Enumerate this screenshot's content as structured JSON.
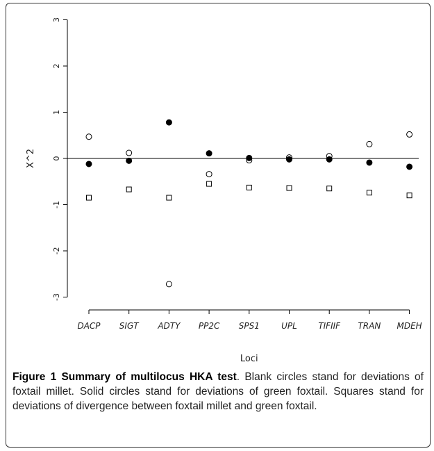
{
  "chart_data": {
    "type": "scatter",
    "categories": [
      "DACP",
      "SIGT",
      "ADTY",
      "PP2C",
      "SPS1",
      "UPL",
      "TIFIIF",
      "TRAN",
      "MDEH"
    ],
    "xlabel": "Loci",
    "ylabel": "X^2",
    "ylim": [
      -3,
      3
    ],
    "yticks": [
      "-3",
      "-2",
      "-1",
      "0",
      "1",
      "2",
      "3"
    ],
    "reference_line": 0,
    "series": [
      {
        "marker": "open-circle",
        "values": [
          0.47,
          0.12,
          -2.72,
          -0.34,
          -0.04,
          0.02,
          0.05,
          0.31,
          0.52
        ]
      },
      {
        "marker": "filled-circle",
        "values": [
          -0.12,
          -0.05,
          0.78,
          0.11,
          0.01,
          -0.02,
          -0.02,
          -0.09,
          -0.18
        ]
      },
      {
        "marker": "square",
        "values": [
          -0.85,
          -0.67,
          -0.85,
          -0.55,
          -0.63,
          -0.64,
          -0.65,
          -0.74,
          -0.8
        ]
      }
    ]
  },
  "caption": {
    "title": "Figure 1 Summary of multilocus HKA test",
    "text": ". Blank circles stand for deviations of foxtail millet. Solid circles stand for deviations of green foxtail. Squares stand for deviations of divergence between foxtail millet and green foxtail."
  }
}
